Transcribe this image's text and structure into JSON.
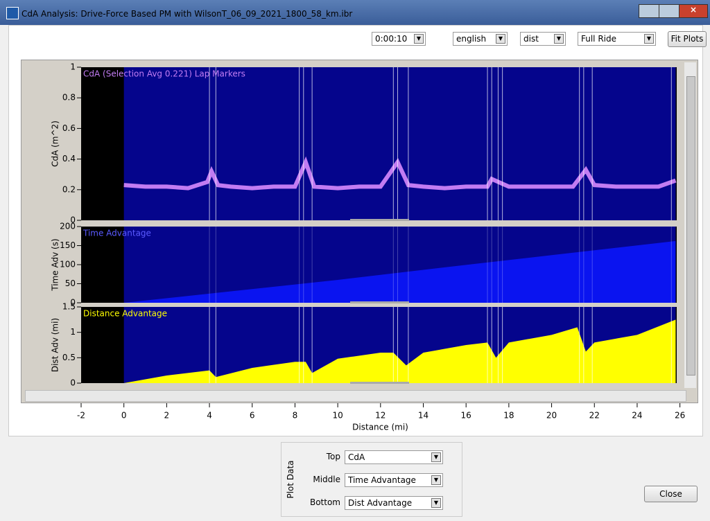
{
  "window": {
    "title": "CdA Analysis:  Drive-Force Based PM with WilsonT_06_09_2021_1800_58_km.ibr"
  },
  "toolbar": {
    "interval": "0:00:10",
    "units": "english",
    "axis": "dist",
    "range": "Full Ride",
    "fit_button": "Fit Plots"
  },
  "chart_data": [
    {
      "type": "line",
      "legend": "CdA (Selection Avg 0.221) Lap Markers",
      "y_label": "CdA (m^2)",
      "color": "#c27cf2",
      "x": [
        0,
        1,
        2,
        3,
        3.9,
        4.1,
        4.4,
        5,
        6,
        7,
        8,
        8.5,
        8.9,
        10,
        11,
        12,
        12.8,
        13.3,
        14,
        15,
        16,
        17,
        17.2,
        18,
        19,
        20,
        21,
        21.6,
        22,
        23,
        24,
        25,
        25.8
      ],
      "values": [
        0.23,
        0.22,
        0.22,
        0.21,
        0.25,
        0.32,
        0.23,
        0.22,
        0.21,
        0.22,
        0.22,
        0.38,
        0.22,
        0.21,
        0.22,
        0.22,
        0.38,
        0.23,
        0.22,
        0.21,
        0.22,
        0.22,
        0.27,
        0.22,
        0.22,
        0.22,
        0.22,
        0.33,
        0.23,
        0.22,
        0.22,
        0.22,
        0.26
      ],
      "lap_markers": [
        4.0,
        4.3,
        8.2,
        8.4,
        8.8,
        12.6,
        12.8,
        13.3,
        17.0,
        17.2,
        17.5,
        17.7,
        21.3,
        21.5,
        21.9,
        25.6
      ],
      "xlim": [
        -2,
        25.85
      ],
      "ylim": [
        0,
        1
      ],
      "yticks": [
        0,
        0.2,
        0.4,
        0.6,
        0.8,
        1
      ]
    },
    {
      "type": "area",
      "legend": "Time Advantage",
      "y_label": "Time Adv (s)",
      "color": "#0a14f0",
      "x": [
        0,
        5,
        10,
        15,
        20,
        25.8
      ],
      "values": [
        0,
        30,
        60,
        93,
        125,
        162
      ],
      "xlim": [
        -2,
        25.85
      ],
      "ylim": [
        0,
        200
      ],
      "yticks": [
        0,
        50,
        100,
        150,
        200
      ]
    },
    {
      "type": "area",
      "legend": "Distance Advantage",
      "y_label": "Dist Adv (mi)",
      "color": "#ffff00",
      "x": [
        0,
        2,
        4,
        4.3,
        6,
        8,
        8.5,
        8.8,
        10,
        12,
        12.6,
        13.2,
        14,
        16,
        17,
        17.4,
        18,
        20,
        21.2,
        21.6,
        22,
        24,
        25.8
      ],
      "values": [
        0,
        0.15,
        0.25,
        0.12,
        0.3,
        0.42,
        0.42,
        0.2,
        0.48,
        0.6,
        0.6,
        0.35,
        0.6,
        0.75,
        0.8,
        0.5,
        0.8,
        0.95,
        1.1,
        0.62,
        0.8,
        0.95,
        1.25
      ],
      "xlim": [
        -2,
        25.85
      ],
      "ylim": [
        0,
        1.5
      ],
      "yticks": [
        0,
        0.5,
        1,
        1.5
      ],
      "x_label": "Distance (mi)",
      "xticks": [
        -2,
        0,
        2,
        4,
        6,
        8,
        10,
        12,
        14,
        16,
        18,
        20,
        22,
        24,
        26
      ]
    }
  ],
  "plot_data": {
    "label": "Plot Data",
    "rows": [
      {
        "label": "Top",
        "value": "CdA"
      },
      {
        "label": "Middle",
        "value": "Time Advantage"
      },
      {
        "label": "Bottom",
        "value": "Dist Advantage"
      }
    ]
  },
  "close_button": "Close"
}
